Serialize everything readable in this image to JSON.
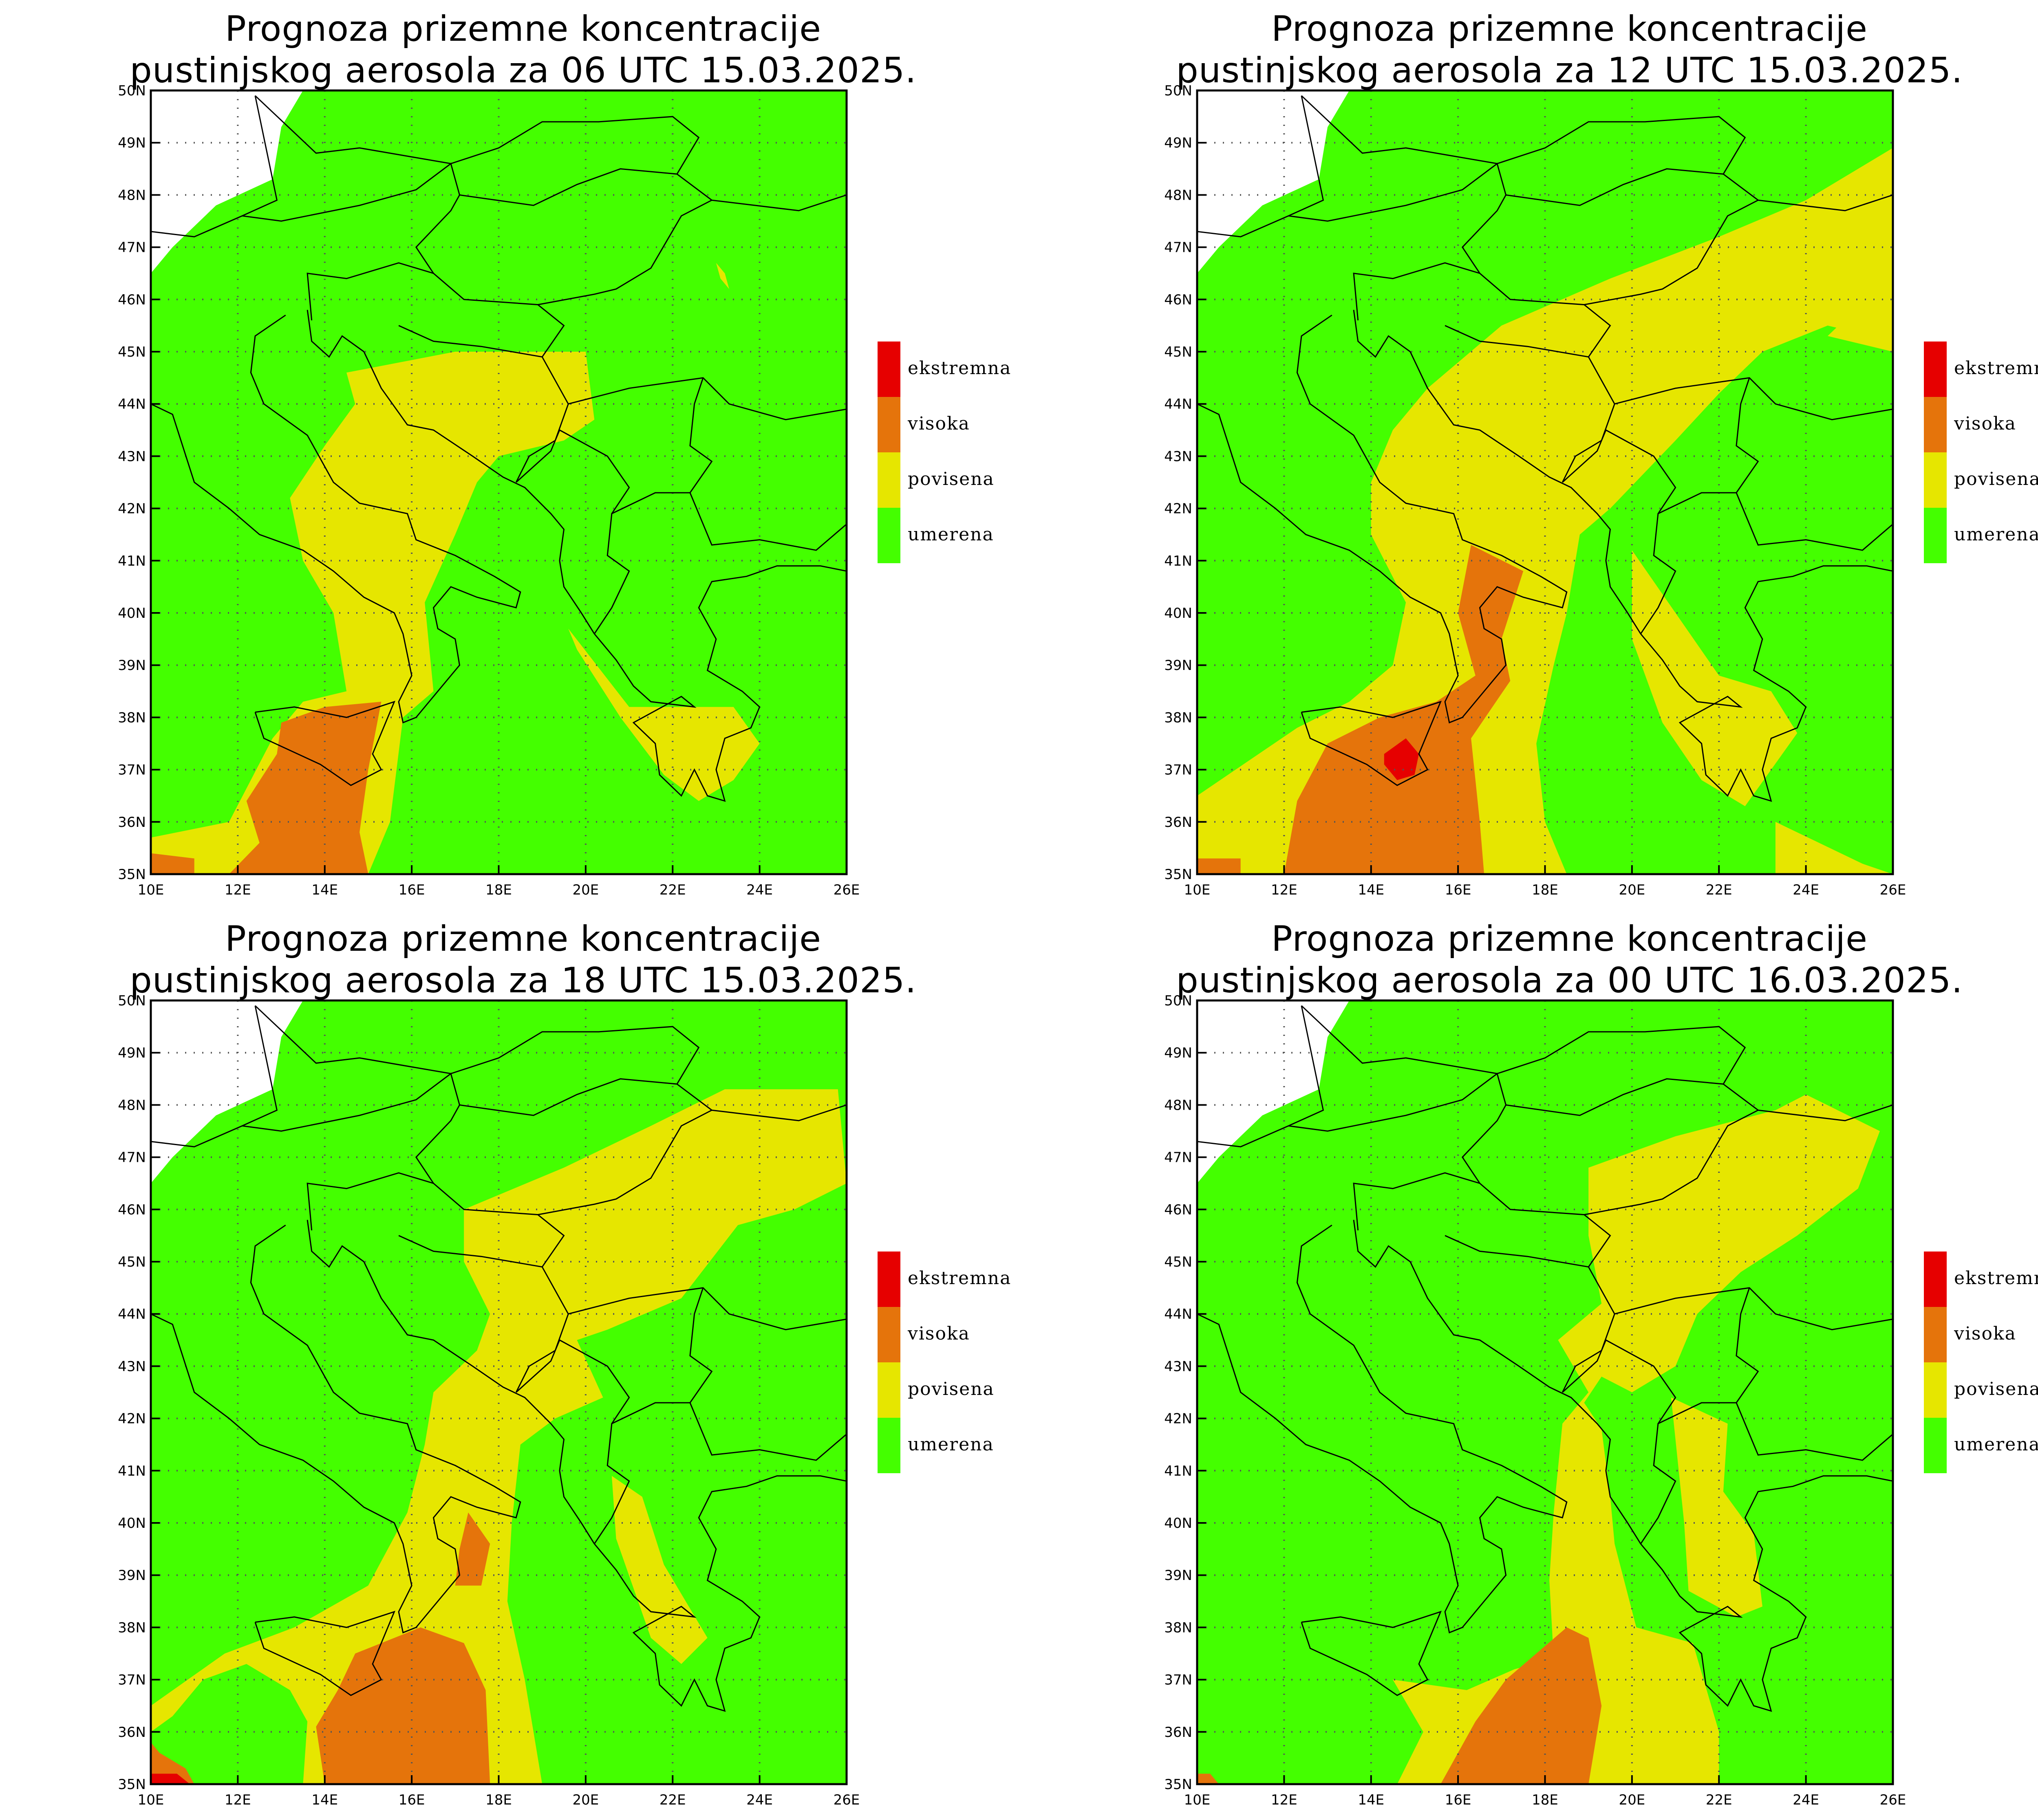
{
  "colors": {
    "umerena": "#44ff00",
    "povisena": "#e6e600",
    "visoka": "#e5740b",
    "ekstremna": "#e60000",
    "land_outline": "#000000",
    "grid": "#555555"
  },
  "legend": [
    {
      "key": "ekstremna",
      "label": "ekstremna"
    },
    {
      "key": "visoka",
      "label": "visoka"
    },
    {
      "key": "povisena",
      "label": "povisena"
    },
    {
      "key": "umerena",
      "label": "umerena"
    }
  ],
  "axes": {
    "lon_ticks": [
      "10E",
      "12E",
      "14E",
      "16E",
      "18E",
      "20E",
      "22E",
      "24E",
      "26E"
    ],
    "lat_ticks": [
      "50N",
      "49N",
      "48N",
      "47N",
      "46N",
      "45N",
      "44N",
      "43N",
      "42N",
      "41N",
      "40N",
      "39N",
      "38N",
      "37N",
      "36N",
      "35N"
    ],
    "lon_range": [
      10,
      26
    ],
    "lat_range": [
      35,
      50
    ]
  },
  "panels": [
    {
      "title_line1": "Prognoza prizemne koncentracije",
      "title_line2": "pustinjskog aerosola za 06 UTC 15.03.2025.",
      "zones": {
        "povisena": [
          [
            [
              14.5,
              44.6
            ],
            [
              17,
              45
            ],
            [
              20,
              45
            ],
            [
              20.2,
              43.7
            ],
            [
              19.5,
              43.3
            ],
            [
              18,
              43
            ],
            [
              17.5,
              42.5
            ],
            [
              17,
              41.5
            ],
            [
              16.3,
              40.2
            ],
            [
              16.5,
              38.5
            ],
            [
              15.8,
              38
            ],
            [
              15.5,
              36
            ],
            [
              15,
              35
            ],
            [
              10,
              35
            ],
            [
              10,
              35.7
            ],
            [
              11.8,
              36
            ],
            [
              12.8,
              37.6
            ],
            [
              13.5,
              38.3
            ],
            [
              14.5,
              38.5
            ],
            [
              14.2,
              40
            ],
            [
              13.5,
              41
            ],
            [
              13.2,
              42.2
            ],
            [
              14,
              43.2
            ],
            [
              14.7,
              44
            ]
          ],
          [
            [
              19.6,
              39.7
            ],
            [
              21,
              38.2
            ],
            [
              21.7,
              38.2
            ],
            [
              23.4,
              38.2
            ],
            [
              24,
              37.5
            ],
            [
              23.4,
              36.8
            ],
            [
              22.6,
              36.4
            ],
            [
              21.8,
              36.9
            ],
            [
              20.8,
              38
            ],
            [
              19.8,
              39.3
            ]
          ],
          [
            [
              23,
              46.7
            ],
            [
              23.2,
              46.5
            ],
            [
              23.3,
              46.2
            ],
            [
              23.1,
              46.4
            ]
          ]
        ],
        "visoka": [
          [
            [
              13,
              37.9
            ],
            [
              14,
              38.2
            ],
            [
              15.3,
              38.3
            ],
            [
              15,
              37
            ],
            [
              14.8,
              35.8
            ],
            [
              15,
              35
            ],
            [
              11.8,
              35
            ],
            [
              12.5,
              35.6
            ],
            [
              12.2,
              36.4
            ],
            [
              12.9,
              37.3
            ]
          ],
          [
            [
              10,
              35
            ],
            [
              11,
              35
            ],
            [
              11,
              35.3
            ],
            [
              10,
              35.4
            ]
          ]
        ],
        "ekstremna": []
      }
    },
    {
      "title_line1": "Prognoza prizemne koncentracije",
      "title_line2": "pustinjskog aerosola za 12 UTC 15.03.2025.",
      "zones": {
        "povisena": [
          [
            [
              15.3,
              44.3
            ],
            [
              17,
              45.5
            ],
            [
              19.5,
              46.4
            ],
            [
              22,
              47.2
            ],
            [
              24,
              47.9
            ],
            [
              26,
              48.9
            ],
            [
              26,
              45.2
            ],
            [
              24.5,
              45.5
            ],
            [
              23,
              45
            ],
            [
              22,
              44.2
            ],
            [
              21,
              43.3
            ],
            [
              19.5,
              42
            ],
            [
              18.8,
              41.5
            ],
            [
              18.5,
              40
            ],
            [
              18.2,
              39
            ],
            [
              17.8,
              37.5
            ],
            [
              18,
              36
            ],
            [
              18.5,
              35
            ],
            [
              10,
              35
            ],
            [
              10,
              36.5
            ],
            [
              12.3,
              37.8
            ],
            [
              13.5,
              38.3
            ],
            [
              14.5,
              39
            ],
            [
              14.8,
              40.2
            ],
            [
              14,
              41.5
            ],
            [
              14,
              42.5
            ],
            [
              14.5,
              43.5
            ]
          ],
          [
            [
              20,
              41.2
            ],
            [
              21,
              40
            ],
            [
              22,
              38.8
            ],
            [
              23.2,
              38.5
            ],
            [
              23.8,
              37.7
            ],
            [
              22.6,
              36.3
            ],
            [
              21.6,
              36.8
            ],
            [
              20.7,
              37.9
            ],
            [
              20,
              39.5
            ]
          ],
          [
            [
              23.3,
              36
            ],
            [
              25.3,
              35.2
            ],
            [
              26,
              35
            ],
            [
              23.3,
              35
            ]
          ],
          [
            [
              24.5,
              45.3
            ],
            [
              25,
              45.7
            ],
            [
              26,
              45.6
            ],
            [
              26,
              45
            ]
          ]
        ],
        "visoka": [
          [
            [
              16.3,
              41.3
            ],
            [
              17.5,
              40.8
            ],
            [
              17,
              39.5
            ],
            [
              17.2,
              38.7
            ],
            [
              16.3,
              37.6
            ],
            [
              16.5,
              36
            ],
            [
              16.6,
              35
            ],
            [
              12,
              35
            ],
            [
              12.3,
              36.4
            ],
            [
              13,
              37.5
            ],
            [
              14.2,
              38
            ],
            [
              15.5,
              38.3
            ],
            [
              16.4,
              38.8
            ],
            [
              16,
              40
            ]
          ],
          [
            [
              10,
              35
            ],
            [
              11,
              35
            ],
            [
              11,
              35.3
            ],
            [
              10,
              35.3
            ]
          ]
        ],
        "ekstremna": [
          [
            [
              14.3,
              37.3
            ],
            [
              14.8,
              37.6
            ],
            [
              15.1,
              37.3
            ],
            [
              15,
              36.9
            ],
            [
              14.6,
              36.8
            ],
            [
              14.3,
              37.1
            ]
          ]
        ]
      }
    },
    {
      "title_line1": "Prognoza prizemne koncentracije",
      "title_line2": "pustinjskog aerosola za 18 UTC 15.03.2025.",
      "zones": {
        "povisena": [
          [
            [
              17.2,
              46
            ],
            [
              19.5,
              46.8
            ],
            [
              21.5,
              47.6
            ],
            [
              23.2,
              48.3
            ],
            [
              25.8,
              48.3
            ],
            [
              26,
              46.5
            ],
            [
              24.8,
              46
            ],
            [
              23.5,
              45.7
            ],
            [
              22.2,
              44.3
            ],
            [
              20.5,
              43.7
            ],
            [
              19.8,
              43.5
            ],
            [
              20.4,
              42.4
            ],
            [
              19.3,
              42
            ],
            [
              18.5,
              41.5
            ],
            [
              18.3,
              40
            ],
            [
              18.2,
              38.5
            ],
            [
              18.6,
              37
            ],
            [
              19,
              35
            ],
            [
              13.5,
              35
            ],
            [
              13.6,
              36.2
            ],
            [
              13.2,
              36.8
            ],
            [
              12.2,
              37.3
            ],
            [
              11.2,
              37
            ],
            [
              10.5,
              36.3
            ],
            [
              10,
              36
            ],
            [
              10,
              35
            ],
            [
              10,
              36.5
            ],
            [
              11.7,
              37.5
            ],
            [
              13.3,
              38
            ],
            [
              15,
              38.8
            ],
            [
              15.9,
              40.2
            ],
            [
              16.3,
              41.5
            ],
            [
              16.5,
              42.5
            ],
            [
              17.5,
              43.3
            ],
            [
              17.8,
              44
            ],
            [
              17.2,
              45
            ]
          ],
          [
            [
              20.6,
              40.9
            ],
            [
              21.3,
              40.5
            ],
            [
              21.8,
              39.2
            ],
            [
              22.8,
              37.8
            ],
            [
              22.2,
              37.3
            ],
            [
              21.5,
              37.8
            ],
            [
              20.7,
              39.7
            ]
          ]
        ],
        "visoka": [
          [
            [
              14.7,
              37.5
            ],
            [
              16.2,
              38
            ],
            [
              17.2,
              37.7
            ],
            [
              17.7,
              36.8
            ],
            [
              17.8,
              35
            ],
            [
              14,
              35
            ],
            [
              13.8,
              36.1
            ],
            [
              14.3,
              36.8
            ]
          ],
          [
            [
              17.3,
              40.2
            ],
            [
              17.8,
              39.6
            ],
            [
              17.6,
              38.8
            ],
            [
              17,
              38.8
            ],
            [
              17.1,
              39.5
            ]
          ],
          [
            [
              10,
              35
            ],
            [
              11,
              35
            ],
            [
              10.8,
              35.3
            ],
            [
              10.2,
              35.6
            ],
            [
              10,
              35.8
            ]
          ]
        ],
        "ekstremna": [
          [
            [
              10,
              35
            ],
            [
              10.9,
              35
            ],
            [
              10.6,
              35.2
            ],
            [
              10,
              35.2
            ]
          ]
        ]
      }
    },
    {
      "title_line1": "Prognoza prizemne koncentracije",
      "title_line2": "pustinjskog aerosola za 00 UTC 16.03.2025.",
      "zones": {
        "povisena": [
          [
            [
              19,
              46.8
            ],
            [
              21,
              47.4
            ],
            [
              23.3,
              47.9
            ],
            [
              24,
              48.2
            ],
            [
              25.7,
              47.5
            ],
            [
              25.2,
              46.4
            ],
            [
              23.8,
              45.5
            ],
            [
              22.5,
              44.8
            ],
            [
              21.5,
              44
            ],
            [
              21,
              43
            ],
            [
              20,
              42.5
            ],
            [
              19.3,
              42.8
            ],
            [
              18.9,
              42.3
            ],
            [
              19.3,
              41.8
            ],
            [
              19.5,
              40.5
            ],
            [
              19.6,
              39.6
            ],
            [
              20.1,
              38
            ],
            [
              21.4,
              37.7
            ],
            [
              22,
              36
            ],
            [
              22,
              35
            ],
            [
              14.6,
              35
            ],
            [
              15.2,
              36
            ],
            [
              14.5,
              37
            ],
            [
              16.2,
              36.8
            ],
            [
              17.3,
              37.2
            ],
            [
              18.2,
              37.4
            ],
            [
              18.1,
              38.9
            ],
            [
              18.2,
              40.2
            ],
            [
              18.4,
              41.9
            ],
            [
              19,
              42.5
            ],
            [
              18.3,
              43.5
            ],
            [
              19.3,
              44.2
            ],
            [
              19,
              45.5
            ]
          ],
          [
            [
              20.9,
              42.4
            ],
            [
              22.2,
              41.9
            ],
            [
              22.1,
              40.6
            ],
            [
              22.8,
              39.8
            ],
            [
              23,
              38.4
            ],
            [
              22.4,
              38.2
            ],
            [
              21.3,
              38.7
            ],
            [
              21.2,
              40
            ]
          ]
        ],
        "visoka": [
          [
            [
              15.6,
              35
            ],
            [
              16.4,
              36.2
            ],
            [
              17.1,
              37
            ],
            [
              18.5,
              38
            ],
            [
              19,
              37.8
            ],
            [
              19.3,
              36.5
            ],
            [
              19,
              35
            ]
          ],
          [
            [
              10,
              35
            ],
            [
              10.5,
              35
            ],
            [
              10.3,
              35.2
            ],
            [
              10,
              35.2
            ]
          ]
        ],
        "ekstremna": []
      }
    }
  ]
}
